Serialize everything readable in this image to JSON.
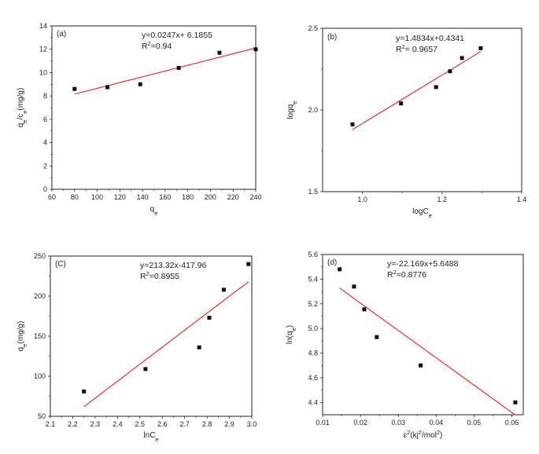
{
  "chart_data": [
    {
      "id": "a",
      "type": "scatter",
      "panel_label": "(a)",
      "xlim": [
        60,
        240
      ],
      "ylim": [
        0,
        14
      ],
      "xticks": [
        60,
        80,
        100,
        120,
        140,
        160,
        180,
        200,
        220,
        240
      ],
      "yticks": [
        0,
        2,
        4,
        6,
        8,
        10,
        12,
        14
      ],
      "x": [
        80,
        109,
        138,
        172,
        208,
        240
      ],
      "y": [
        8.6,
        8.75,
        9.0,
        10.4,
        11.7,
        12.0
      ],
      "fit": [
        [
          80,
          8.16
        ],
        [
          240,
          12.11
        ]
      ],
      "xlabel": {
        "main": "q",
        "sub": "e",
        "post": ""
      },
      "ylabel": {
        "segments": [
          [
            "q",
            ""
          ],
          [
            "e",
            "sub"
          ],
          [
            "/c",
            ""
          ],
          [
            "e",
            "sub"
          ],
          [
            "(mg/g)",
            ""
          ]
        ]
      },
      "equation": "y=0.0247x+ 6.1855",
      "r2": {
        "base": "R",
        "sup": "2",
        "rest": "=0.94"
      },
      "line_color": "#e8231f",
      "marker_color": "#111111"
    },
    {
      "id": "b",
      "type": "scatter",
      "panel_label": "(b)",
      "xlim": [
        0.9,
        1.4
      ],
      "ylim": [
        1.5,
        2.5
      ],
      "xticks": [
        1.0,
        1.2,
        1.4
      ],
      "xtick_labels": [
        "1.0",
        "1.2",
        "1.4"
      ],
      "yticks": [
        1.5,
        2.0,
        2.5
      ],
      "ytick_labels": [
        "1.5",
        "2.0",
        "2.5"
      ],
      "x": [
        0.975,
        1.097,
        1.185,
        1.22,
        1.25,
        1.297
      ],
      "y": [
        1.912,
        2.04,
        2.14,
        2.237,
        2.318,
        2.378
      ],
      "fit": [
        [
          0.975,
          1.88
        ],
        [
          1.297,
          2.358
        ]
      ],
      "xlabel": {
        "main": "logC",
        "sub": "e",
        "post": ""
      },
      "ylabel": {
        "segments": [
          [
            "logq",
            ""
          ],
          [
            "e",
            "sub"
          ]
        ]
      },
      "equation": "y=1.4834x+0.4341",
      "r2": {
        "base": "R",
        "sup": "2",
        "rest": "= 0.9657"
      },
      "line_color": "#e8231f",
      "marker_color": "#111111"
    },
    {
      "id": "c",
      "type": "scatter",
      "panel_label": "(C)",
      "xlim": [
        2.1,
        3.0
      ],
      "ylim": [
        50,
        250
      ],
      "xticks": [
        2.1,
        2.2,
        2.3,
        2.4,
        2.5,
        2.6,
        2.7,
        2.8,
        2.9,
        3.0
      ],
      "xtick_labels": [
        "2.1",
        "2.2",
        "2.3",
        "2.4",
        "2.5",
        "2.6",
        "2.7",
        "2.8",
        "2.9",
        "3.0"
      ],
      "yticks": [
        50,
        100,
        150,
        200,
        250
      ],
      "x": [
        2.25,
        2.525,
        2.765,
        2.81,
        2.875,
        2.985
      ],
      "y": [
        81,
        109,
        136,
        173,
        208,
        240
      ],
      "fit": [
        [
          2.25,
          62.0
        ],
        [
          2.985,
          218.0
        ]
      ],
      "xlabel": {
        "main": "lnC",
        "sub": "e",
        "post": ""
      },
      "ylabel": {
        "segments": [
          [
            "q",
            ""
          ],
          [
            "e",
            "sub"
          ],
          [
            "(mg/g)",
            ""
          ]
        ]
      },
      "equation": "y=213.32x-417.96",
      "r2": {
        "base": "R",
        "sup": "2",
        "rest": "=0.8955"
      },
      "line_color": "#e8231f",
      "marker_color": "#111111"
    },
    {
      "id": "d",
      "type": "scatter",
      "panel_label": "(d)",
      "xlim": [
        0.01,
        0.063
      ],
      "ylim": [
        4.3,
        5.6
      ],
      "xticks": [
        0.01,
        0.02,
        0.03,
        0.04,
        0.05,
        0.06
      ],
      "xtick_labels": [
        "0.01",
        "0.02",
        "0.03",
        "0.04",
        "0.05",
        "0.06"
      ],
      "yticks": [
        4.4,
        4.6,
        4.8,
        5.0,
        5.2,
        5.4,
        5.6
      ],
      "ytick_labels": [
        "4.4",
        "4.6",
        "4.8",
        "5.0",
        "5.2",
        "5.4",
        "5.6"
      ],
      "x": [
        0.0145,
        0.0183,
        0.021,
        0.0243,
        0.0359,
        0.0609
      ],
      "y": [
        5.48,
        5.34,
        5.155,
        4.93,
        4.7,
        4.4
      ],
      "fit": [
        [
          0.0145,
          5.327
        ],
        [
          0.0609,
          4.298
        ]
      ],
      "xlabel": {
        "pre": "ε",
        "presup": "2",
        "main": "(kj",
        "sub": "",
        "post": "",
        "segments": [
          [
            "ε",
            ""
          ],
          [
            "2",
            "sup"
          ],
          [
            "(kj",
            ""
          ],
          [
            "2",
            "sup"
          ],
          [
            "/mol",
            ""
          ],
          [
            "2",
            "sup"
          ],
          [
            ")",
            ""
          ]
        ]
      },
      "ylabel": {
        "segments": [
          [
            "ln(q",
            ""
          ],
          [
            "e",
            "sub"
          ],
          [
            ")",
            ""
          ]
        ]
      },
      "equation": "y=-22.169x+5.6488",
      "r2": {
        "base": "R",
        "sup": "2",
        "rest": "=0.8776"
      },
      "line_color": "#e8231f",
      "marker_color": "#111111"
    }
  ]
}
